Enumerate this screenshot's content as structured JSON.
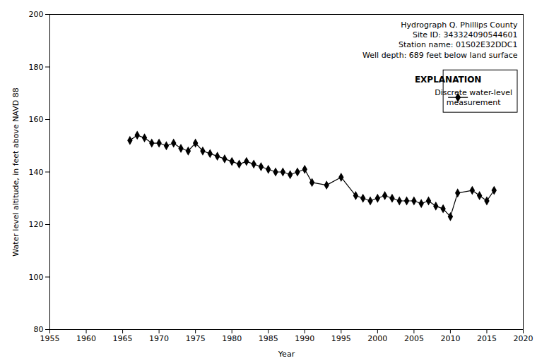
{
  "chart_data": {
    "type": "line",
    "annotations": [
      "Hydrograph Q. Phillips County",
      "Site ID: 343324090544601",
      "Station name: 01S02E32DDC1",
      "Well depth: 689 feet below land surface"
    ],
    "xlabel": "Year",
    "ylabel": "Water level altitude, in feet above NAVD 88",
    "x": [
      1966,
      1967,
      1968,
      1969,
      1970,
      1971,
      1972,
      1973,
      1974,
      1975,
      1976,
      1977,
      1978,
      1979,
      1980,
      1981,
      1982,
      1983,
      1984,
      1985,
      1986,
      1987,
      1988,
      1989,
      1990,
      1991,
      1993,
      1995,
      1997,
      1998,
      1999,
      2000,
      2001,
      2002,
      2003,
      2004,
      2005,
      2006,
      2007,
      2008,
      2009,
      2010,
      2011,
      2013,
      2014,
      2015,
      2016
    ],
    "series": [
      {
        "name": "Discrete water-level\nmeasurement",
        "color": "#000000",
        "marker": "diamond",
        "values": [
          152,
          154,
          153,
          151,
          151,
          150,
          151,
          149,
          148,
          151,
          148,
          147,
          146,
          145,
          144,
          143,
          144,
          143,
          142,
          141,
          140,
          140,
          139,
          140,
          141,
          136,
          135,
          138,
          131,
          130,
          129,
          130,
          131,
          130,
          129,
          129,
          129,
          128,
          129,
          127,
          126,
          123,
          132,
          133,
          131,
          129,
          133
        ]
      }
    ],
    "xlim": [
      1955,
      2020
    ],
    "ylim": [
      80,
      200
    ],
    "xticks": [
      1955,
      1960,
      1965,
      1970,
      1975,
      1980,
      1985,
      1990,
      1995,
      2000,
      2005,
      2010,
      2015,
      2020
    ],
    "yticks": [
      80,
      100,
      120,
      140,
      160,
      180,
      200
    ],
    "legend": "upper right",
    "legend_title": "EXPLANATION",
    "grid": false
  }
}
